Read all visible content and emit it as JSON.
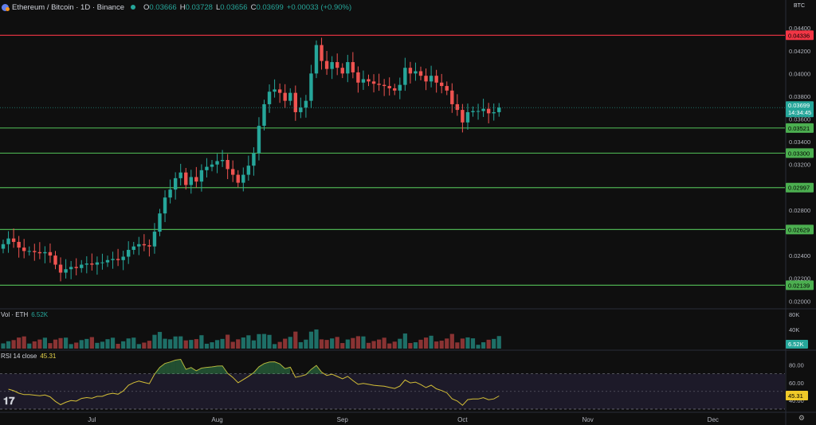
{
  "header": {
    "symbol": "Ethereum / Bitcoin · 1D · Binance",
    "o_label": "O",
    "o": "0.03666",
    "h_label": "H",
    "h": "0.03728",
    "l_label": "L",
    "l": "0.03656",
    "c_label": "C",
    "c": "0.03699",
    "change": "+0.00033 (+0.90%)"
  },
  "unit": "BTC",
  "volume": {
    "label": "Vol · ETH",
    "value": "6.52K"
  },
  "rsi": {
    "label": "RSI 14 close",
    "value": "45.31"
  },
  "price_label": {
    "value": "0.03699",
    "countdown": "14:34:45"
  },
  "chart_data": [
    {
      "type": "candlestick",
      "ylim": [
        0.0196,
        0.0452
      ],
      "price_ticks": [
        "0.04400",
        "0.04200",
        "0.04000",
        "0.03800",
        "0.03600",
        "0.03400",
        "0.03200",
        "0.02800",
        "0.02400",
        "0.02200",
        "0.02000"
      ],
      "x_labels": [
        {
          "label": "Jul",
          "index": 17
        },
        {
          "label": "Aug",
          "index": 41
        },
        {
          "label": "Sep",
          "index": 65
        },
        {
          "label": "Oct",
          "index": 88
        },
        {
          "label": "Nov",
          "index": 112
        },
        {
          "label": "Dec",
          "index": 136
        }
      ],
      "levels": [
        {
          "value": 0.04336,
          "label": "0.04336",
          "color": "#f23645"
        },
        {
          "value": 0.03521,
          "label": "0.03521",
          "color": "#4caf50"
        },
        {
          "value": 0.033,
          "label": "0.03300",
          "color": "#4caf50"
        },
        {
          "value": 0.02997,
          "label": "0.02997",
          "color": "#4caf50"
        },
        {
          "value": 0.02629,
          "label": "0.02629",
          "color": "#4caf50"
        },
        {
          "value": 0.02139,
          "label": "0.02139",
          "color": "#4caf50"
        }
      ],
      "close_series": [
        0.025,
        0.0255,
        0.0252,
        0.0247,
        0.0244,
        0.0244,
        0.0243,
        0.0242,
        0.0243,
        0.024,
        0.0232,
        0.0225,
        0.0228,
        0.023,
        0.0229,
        0.0232,
        0.0233,
        0.0232,
        0.0234,
        0.0234,
        0.0236,
        0.0237,
        0.0236,
        0.0239,
        0.0245,
        0.0248,
        0.025,
        0.0249,
        0.0248,
        0.0261,
        0.0277,
        0.0291,
        0.0298,
        0.0308,
        0.0313,
        0.0302,
        0.0309,
        0.0305,
        0.0315,
        0.0318,
        0.032,
        0.0323,
        0.0324,
        0.0316,
        0.0311,
        0.0304,
        0.0311,
        0.0319,
        0.033,
        0.0354,
        0.0373,
        0.0384,
        0.0386,
        0.0383,
        0.0376,
        0.0383,
        0.0366,
        0.037,
        0.0376,
        0.04,
        0.0425,
        0.0411,
        0.0404,
        0.041,
        0.0405,
        0.04,
        0.041,
        0.0401,
        0.0392,
        0.0395,
        0.0393,
        0.0391,
        0.039,
        0.0389,
        0.0387,
        0.0385,
        0.039,
        0.0405,
        0.04,
        0.0402,
        0.0398,
        0.0393,
        0.0398,
        0.0392,
        0.0389,
        0.0385,
        0.0373,
        0.0368,
        0.0357,
        0.0366,
        0.0367,
        0.0367,
        0.0369,
        0.0365,
        0.0366,
        0.037
      ],
      "volume_ylim": [
        0,
        100
      ],
      "volume_ticks": [
        "80K",
        "40K"
      ],
      "rsi_ylim": [
        30,
        95
      ],
      "rsi_ticks": [
        "80.00",
        "60.00",
        "40.00"
      ],
      "rsi_band": [
        30,
        70
      ],
      "colors": {
        "up": "#26a69a",
        "down": "#ef5350",
        "rsi": "#d4bf37"
      }
    }
  ]
}
